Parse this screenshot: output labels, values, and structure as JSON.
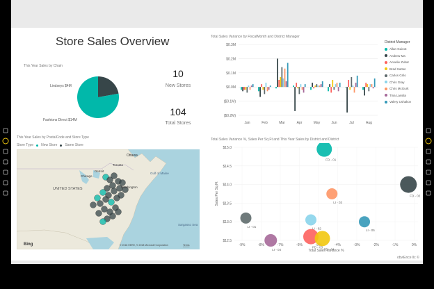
{
  "report": {
    "title": "Store Sales Overview",
    "footer_link": "obviEnce llc ©"
  },
  "pie": {
    "caption": "This Year Sales by Chain",
    "slices": [
      {
        "label": "Lindseys $4M",
        "value": 4,
        "color": "#374649"
      },
      {
        "label": "Fashions Direct $14M",
        "value": 14,
        "color": "#01b8aa"
      }
    ]
  },
  "kpis": [
    {
      "value": "10",
      "label": "New Stores"
    },
    {
      "value": "104",
      "label": "Total Stores"
    }
  ],
  "map": {
    "caption": "This Year Sales by PostalCode and Store Type",
    "legend_title": "Store Type",
    "legend_items": [
      {
        "label": "New Store",
        "color": "#01b8aa"
      },
      {
        "label": "Same Store",
        "color": "#374649"
      }
    ],
    "labels": [
      "Ottawa",
      "Toronto",
      "Chicago",
      "Detroit",
      "UNITED STATES",
      "Washington",
      "Gulf of Maine",
      "Sargasso Sea",
      "Bing",
      "© 2018 HERE, © 2018 Microsoft Corporation",
      "Terms"
    ]
  },
  "variance_chart": {
    "caption": "Total Sales Variance by FiscalMonth and District Manager",
    "chart_data": {
      "type": "bar",
      "categories": [
        "Jan",
        "Feb",
        "Mar",
        "Apr",
        "May",
        "Jun",
        "Jul",
        "Aug"
      ],
      "y_ticks": [
        "$0.3M",
        "$0.2M",
        "$0.1M",
        "$0.0M",
        "($0.1M)",
        "($0.2M)"
      ],
      "ylim": [
        -0.2,
        0.3
      ],
      "legend_title": "District Manager",
      "series": [
        {
          "name": "Allan Guinot",
          "color": "#01b8aa",
          "values": [
            -0.02,
            -0.03,
            -0.01,
            0.01,
            -0.02,
            -0.03,
            0.0,
            -0.02
          ]
        },
        {
          "name": "Andrew Ma",
          "color": "#374649",
          "values": [
            -0.03,
            -0.07,
            0.2,
            -0.17,
            0.03,
            0.02,
            -0.18,
            -0.06
          ]
        },
        {
          "name": "Annelie Zubar",
          "color": "#fd625e",
          "values": [
            -0.02,
            0.02,
            0.05,
            0.03,
            -0.01,
            -0.04,
            0.05,
            0.03
          ]
        },
        {
          "name": "Brad Sutton",
          "color": "#f2c80f",
          "values": [
            -0.02,
            -0.02,
            0.07,
            -0.01,
            0.01,
            0.05,
            -0.02,
            0.02
          ]
        },
        {
          "name": "Carlos Grilo",
          "color": "#5f6b6d",
          "values": [
            -0.04,
            -0.05,
            0.14,
            -0.05,
            0.02,
            -0.02,
            0.07,
            -0.03
          ]
        },
        {
          "name": "Chris Gray",
          "color": "#8ad4eb",
          "values": [
            0.01,
            0.03,
            0.06,
            0.02,
            0.01,
            0.02,
            0.01,
            0.02
          ]
        },
        {
          "name": "Chris McGurk",
          "color": "#fe9666",
          "values": [
            -0.02,
            -0.03,
            0.13,
            -0.02,
            0.01,
            0.03,
            -0.04,
            0.02
          ]
        },
        {
          "name": "Tina Lassila",
          "color": "#a66999",
          "values": [
            0.01,
            -0.02,
            0.04,
            -0.04,
            0.02,
            -0.03,
            0.03,
            -0.01
          ]
        },
        {
          "name": "Valery Ushakov",
          "color": "#3599b8",
          "values": [
            0.02,
            0.01,
            0.17,
            0.02,
            0.04,
            0.03,
            0.08,
            0.06
          ]
        }
      ]
    }
  },
  "bubble_chart": {
    "caption": "Total Sales Variance %, Sales Per Sq Ft and This Year Sales by District and District",
    "chart_data": {
      "type": "scatter",
      "xlabel": "Total Sales Variance %",
      "ylabel": "Sales Per Sq Ft",
      "x_ticks": [
        "-9%",
        "-8%",
        "-7%",
        "-6%",
        "-5%",
        "-4%",
        "-3%",
        "-2%",
        "-1%",
        "0%"
      ],
      "y_ticks": [
        "$15.0",
        "$14.5",
        "$14.0",
        "$13.5",
        "$13.0",
        "$12.5"
      ],
      "xlim": [
        -9.4,
        0.2
      ],
      "ylim": [
        12.5,
        15.0
      ],
      "points": [
        {
          "label": "FD - 01",
          "x": -4.7,
          "y": 14.95,
          "size": 11,
          "color": "#01b8aa"
        },
        {
          "label": "FD - 02",
          "x": -0.3,
          "y": 14.0,
          "size": 12,
          "color": "#374649"
        },
        {
          "label": "LI - 01",
          "x": -8.8,
          "y": 13.1,
          "size": 8,
          "color": "#5f6b6d"
        },
        {
          "label": "LI - 02",
          "x": -5.4,
          "y": 13.05,
          "size": 8,
          "color": "#8ad4eb"
        },
        {
          "label": "LI - 03",
          "x": -4.3,
          "y": 13.75,
          "size": 8,
          "color": "#fe9666"
        },
        {
          "label": "LI - 04",
          "x": -7.5,
          "y": 12.5,
          "size": 9,
          "color": "#a66999"
        },
        {
          "label": "FD - 03",
          "x": -5.4,
          "y": 12.6,
          "size": 11,
          "color": "#fd625e"
        },
        {
          "label": "FD - 04",
          "x": -4.8,
          "y": 12.55,
          "size": 11,
          "color": "#f2c80f"
        },
        {
          "label": "LI - 05",
          "x": -2.6,
          "y": 13.0,
          "size": 8,
          "color": "#3599b8"
        }
      ]
    }
  },
  "left_toolbar": [
    "back-icon",
    "brand-icon",
    "pencil-icon",
    "copy-icon",
    "search-icon",
    "refresh-icon",
    "settings-icon"
  ],
  "right_toolbar": [
    "back-icon",
    "brand-icon",
    "pencil-icon",
    "copy-icon",
    "search-icon",
    "refresh-icon",
    "settings-icon"
  ]
}
